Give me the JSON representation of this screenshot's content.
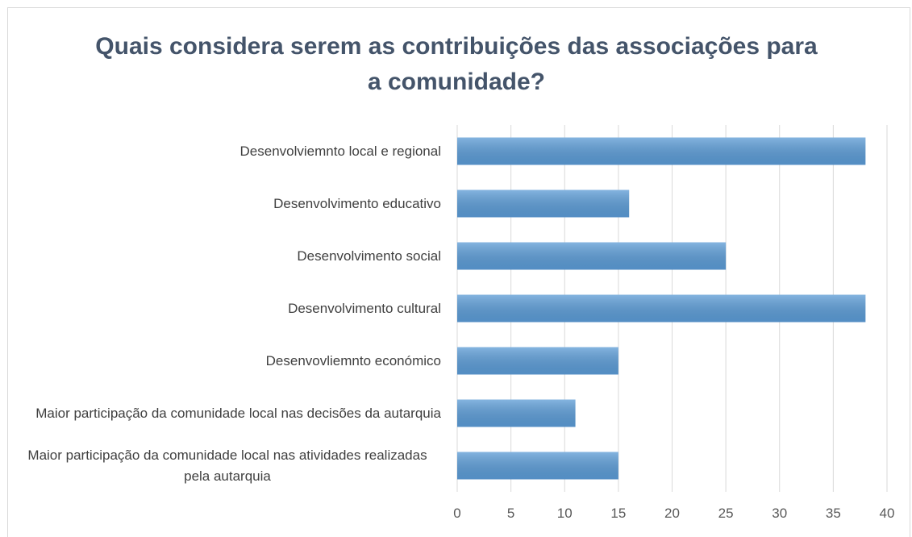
{
  "chart_data": {
    "type": "bar",
    "orientation": "horizontal",
    "title": "Quais considera serem as contribuições das associações para a comunidade?",
    "categories": [
      "Desenvolviemnto local e regional",
      "Desenvolvimento educativo",
      "Desenvolvimento social",
      "Desenvolvimento cultural",
      "Desenvovliemnto económico",
      "Maior participação da comunidade local nas decisões da autarquia",
      "Maior participação da comunidade local nas atividades realizadas pela autarquia"
    ],
    "values": [
      38,
      16,
      25,
      38,
      15,
      11,
      15
    ],
    "color": "#5b9bd5",
    "xlim": [
      0,
      40
    ],
    "xticks": [
      0,
      5,
      10,
      15,
      20,
      25,
      30,
      35,
      40
    ],
    "grid": true
  }
}
